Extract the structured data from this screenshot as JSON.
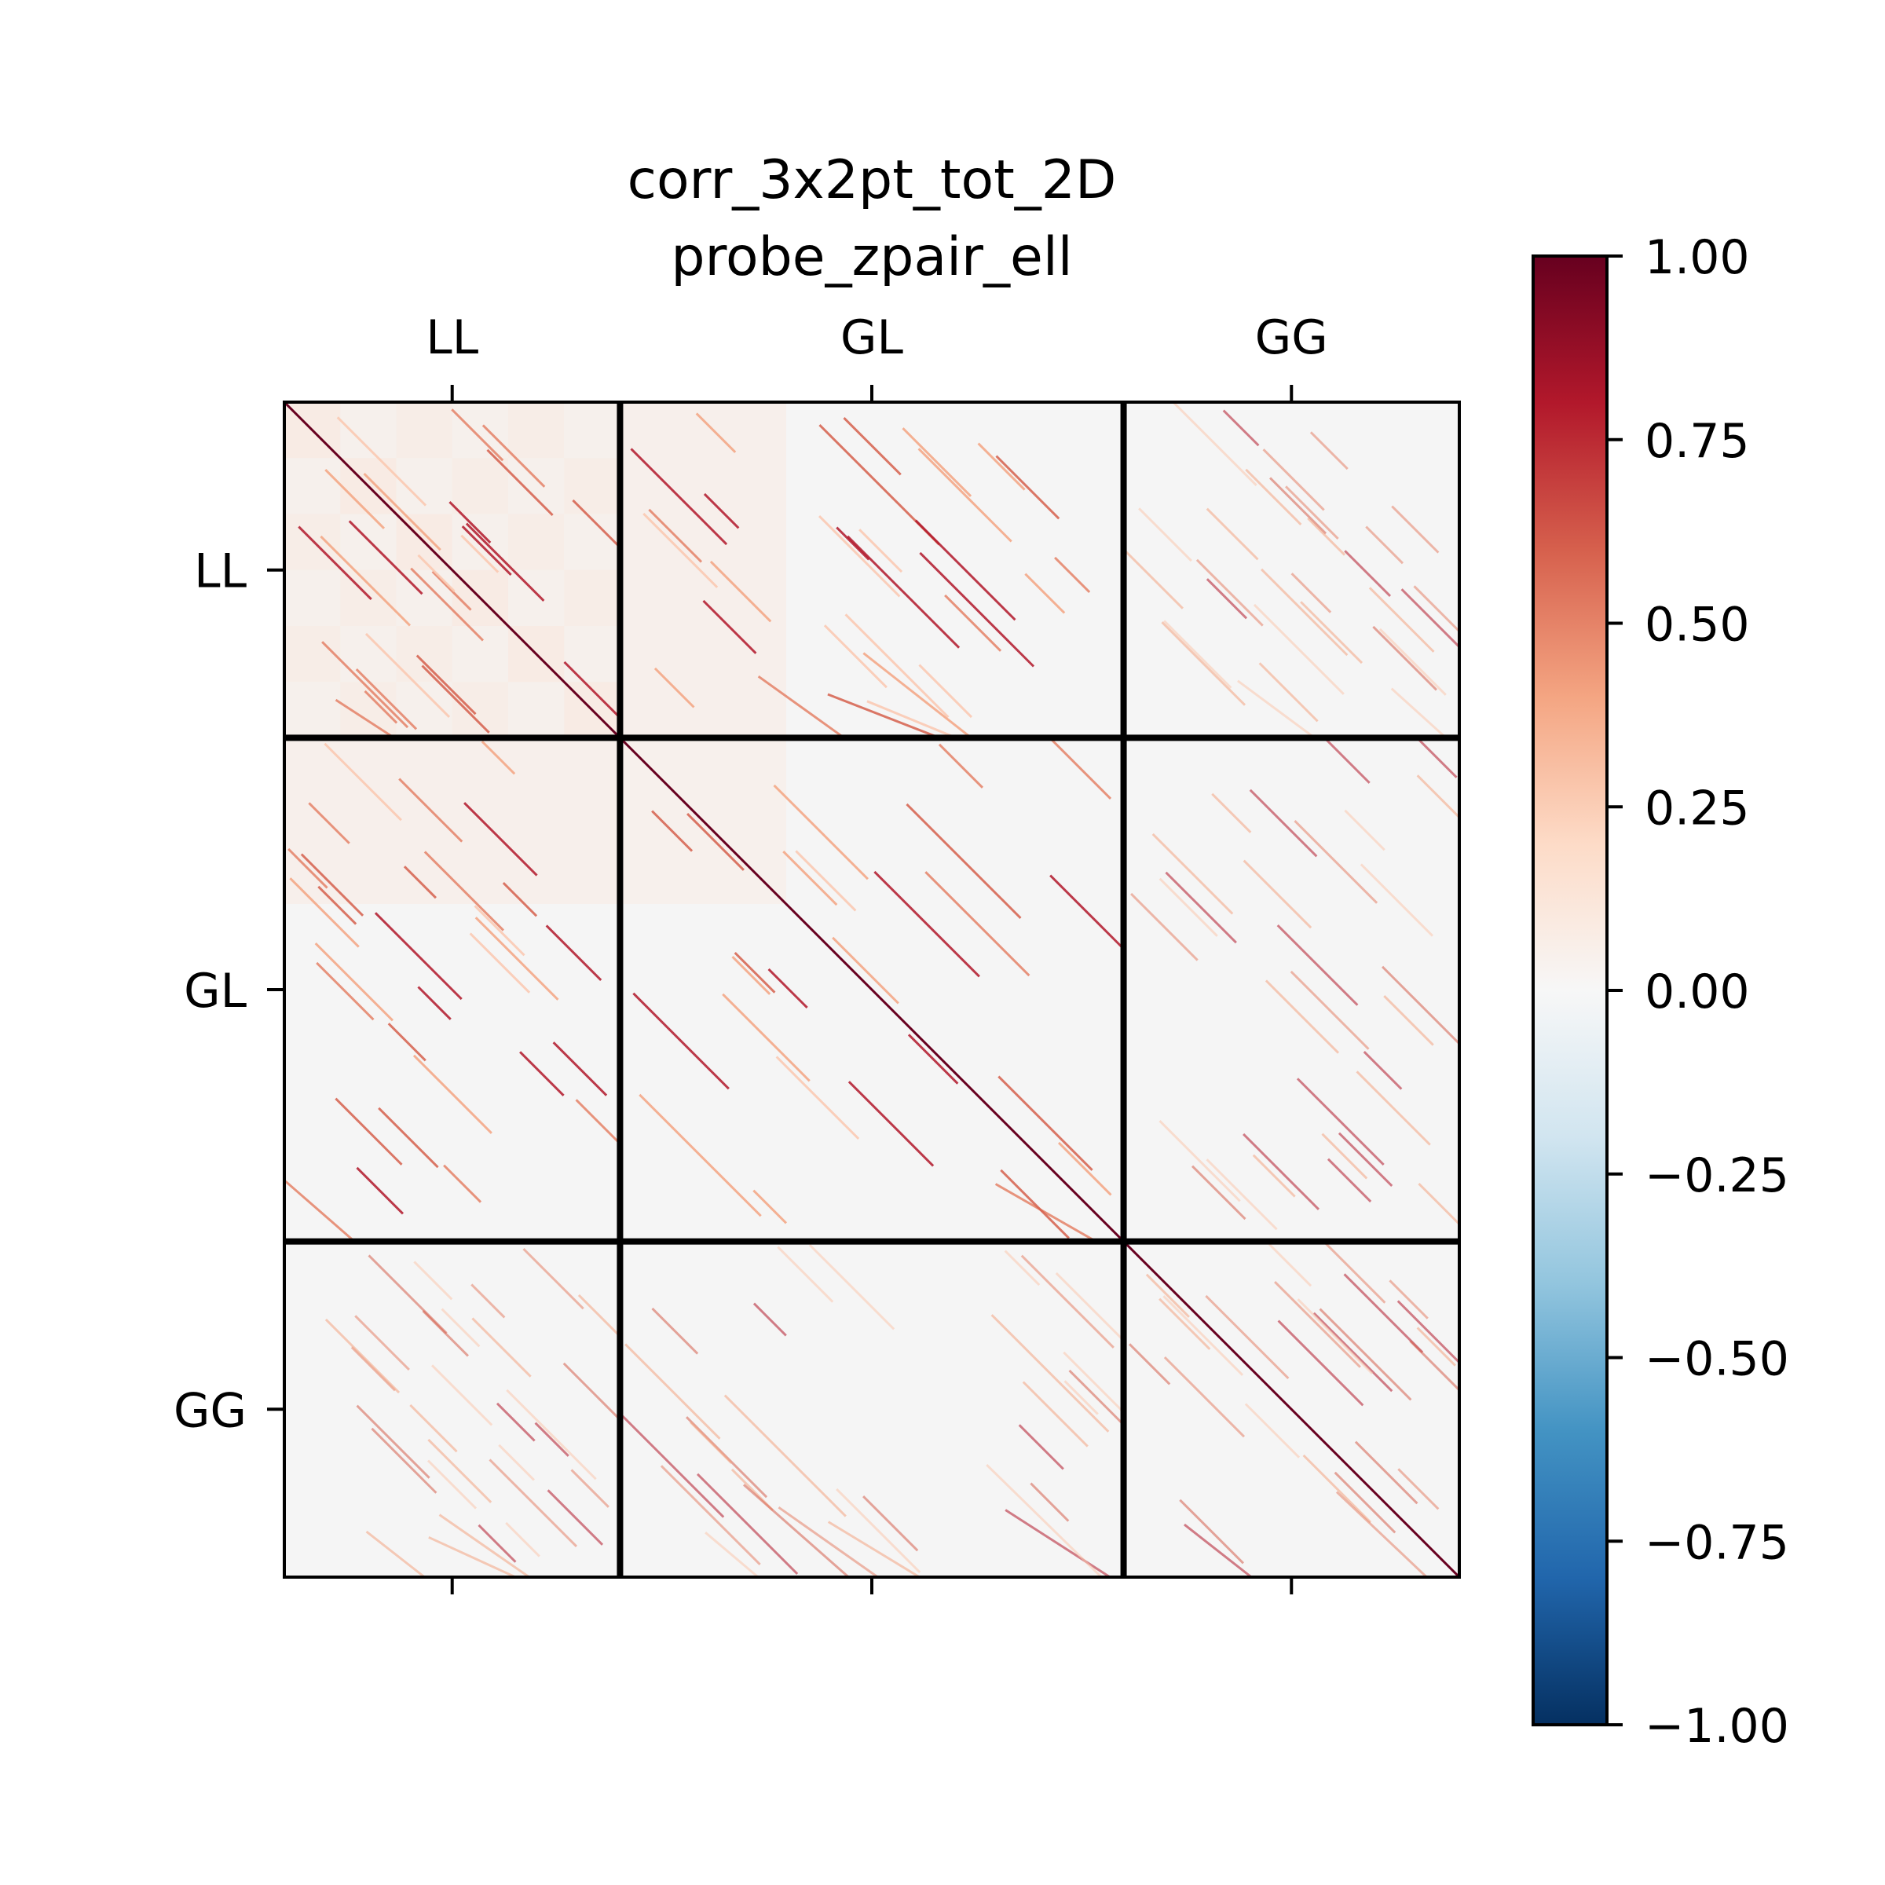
{
  "chart_data": {
    "type": "heatmap",
    "title": "corr_3x2pt_tot_2D",
    "subtitle": "probe_zpair_ell",
    "probe_blocks": [
      {
        "label": "LL",
        "span": 1
      },
      {
        "label": "GL",
        "span": 1.5
      },
      {
        "label": "GG",
        "span": 1
      }
    ],
    "x_tick_labels": [
      "LL",
      "GL",
      "GG"
    ],
    "y_tick_labels": [
      "LL",
      "GL",
      "GG"
    ],
    "main_diagonal_value": 1.0,
    "colorbar": {
      "colormap": "RdBu_r",
      "vmin": -1.0,
      "vmax": 1.0,
      "ticks": [
        "1.00",
        "0.75",
        "0.50",
        "0.25",
        "0.00",
        "−0.25",
        "−0.50",
        "−0.75",
        "−1.00"
      ],
      "tick_values": [
        1.0,
        0.75,
        0.5,
        0.25,
        0.0,
        -0.25,
        -0.5,
        -0.75,
        -1.0
      ],
      "colors": [
        "#67001f",
        "#b2182b",
        "#d6604d",
        "#f4a582",
        "#fddbc7",
        "#f7f7f7",
        "#d1e5f0",
        "#92c5de",
        "#4393c3",
        "#2166ac",
        "#053061"
      ]
    },
    "background_value": 0.0,
    "background_color": "#f5f5f5"
  }
}
